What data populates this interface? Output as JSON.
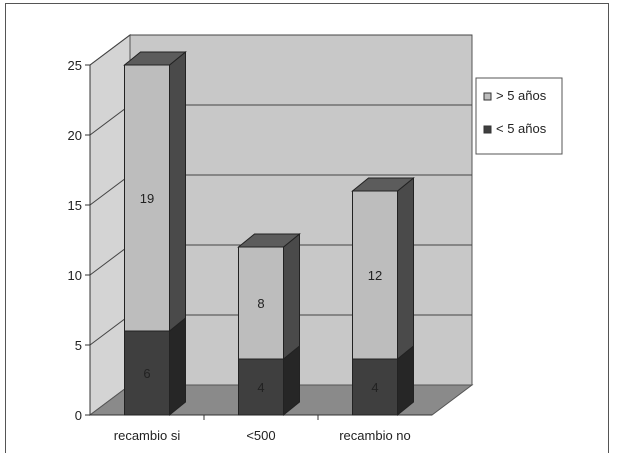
{
  "chart_data": {
    "type": "bar",
    "stacked": true,
    "three_d": true,
    "categories": [
      "recambio si",
      "<500",
      "recambio no"
    ],
    "series": [
      {
        "name": "< 5 años",
        "values": [
          6,
          4,
          4
        ],
        "color": "#3f3f3f"
      },
      {
        "name": "> 5 años",
        "values": [
          19,
          8,
          12
        ],
        "color": "#bdbdbd"
      }
    ],
    "yticks": [
      "0",
      "5",
      "10",
      "15",
      "20",
      "25"
    ],
    "ylim": [
      0,
      25
    ],
    "grid": true,
    "legend_position": "right",
    "legend": [
      "> 5 años",
      "< 5 años"
    ],
    "colors": {
      "wall": "#c8c8c8",
      "floor": "#8a8a8a",
      "bar_dark": "#3f3f3f",
      "bar_light": "#bdbdbd"
    }
  }
}
